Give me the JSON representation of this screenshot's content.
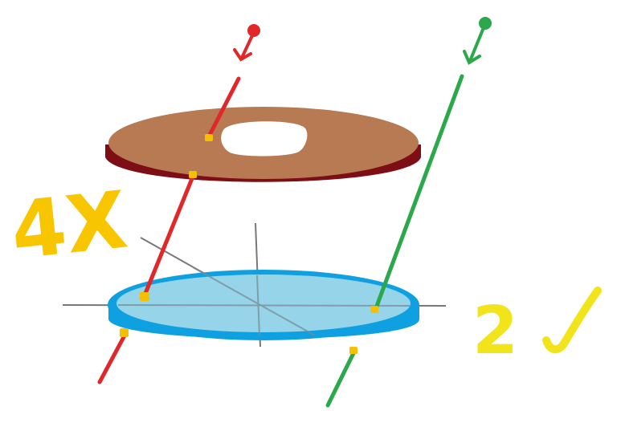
{
  "labels": {
    "red_ray_count": "4X",
    "green_ray_count": "2"
  },
  "checkmark_icon": "checkmark-icon",
  "colors": {
    "red_ray": "#e0282a",
    "green_ray": "#2aa84a",
    "donut_top": "#b87a52",
    "donut_edge": "#7d0e16",
    "disk_top": "#9fd8ea",
    "disk_edge": "#0ea0e0",
    "label_yellow": "#f7c600",
    "label_yellow_green": "#f2e41a",
    "intersection_dot": "#f5c000",
    "axis": "#777777"
  }
}
